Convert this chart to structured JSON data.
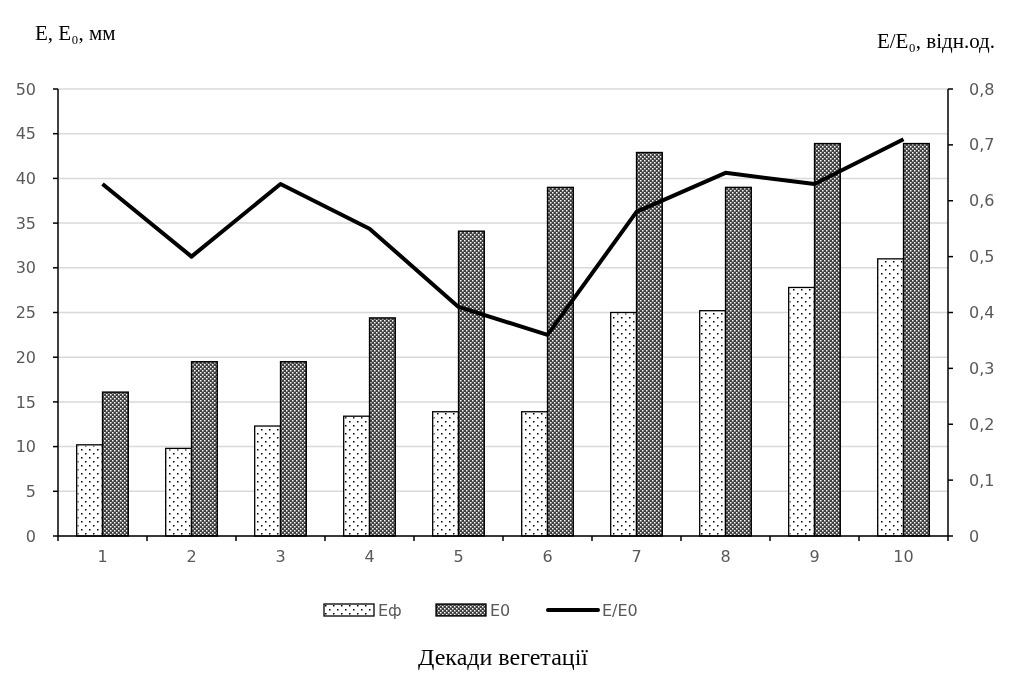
{
  "chart_data": {
    "type": "bar",
    "xlabel": "Декади вегетації",
    "ylabel": "E, E₀, мм",
    "y2label": "E/E₀, відн.од.",
    "categories": [
      "1",
      "2",
      "3",
      "4",
      "5",
      "6",
      "7",
      "8",
      "9",
      "10"
    ],
    "series": [
      {
        "name": "Eф",
        "color": "#ffffff",
        "values": [
          10.2,
          9.8,
          12.3,
          13.4,
          13.9,
          13.9,
          25,
          25.2,
          27.8,
          31
        ]
      },
      {
        "name": "E0",
        "color": "#404040",
        "values": [
          16.1,
          19.5,
          19.5,
          24.4,
          34.1,
          39,
          42.9,
          39,
          43.9,
          43.9
        ]
      },
      {
        "name": "E/E0",
        "type": "line",
        "axis": "y2",
        "color": "#000000",
        "values": [
          0.63,
          0.5,
          0.63,
          0.55,
          0.41,
          0.36,
          0.58,
          0.65,
          0.63,
          0.71
        ]
      }
    ],
    "ylim": [
      0,
      50
    ],
    "yticks": [
      0,
      5,
      10,
      15,
      20,
      25,
      30,
      35,
      40,
      45,
      50
    ],
    "y2lim": [
      0,
      0.8
    ],
    "y2ticks": [
      0,
      {
        "value": 0.1,
        "label": "0,1"
      },
      {
        "value": 0.2,
        "label": "0,2"
      },
      {
        "value": 0.3,
        "label": "0,3"
      },
      {
        "value": 0.4,
        "label": "0,4"
      },
      {
        "value": 0.5,
        "label": "0,5"
      },
      {
        "value": 0.6,
        "label": "0,6"
      },
      {
        "value": 0.7,
        "label": "0,7"
      },
      {
        "value": 0.8,
        "label": "0,8"
      }
    ],
    "grid": "y",
    "legend": "bottom",
    "marker": "none",
    "line_style": "solid"
  }
}
